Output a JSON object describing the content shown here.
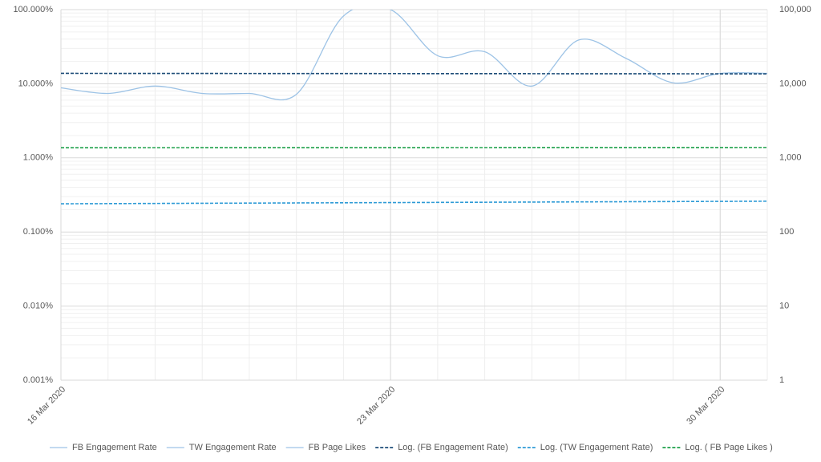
{
  "chart_data": {
    "type": "line",
    "x": [
      "2020-03-16",
      "2020-03-17",
      "2020-03-18",
      "2020-03-19",
      "2020-03-20",
      "2020-03-21",
      "2020-03-22",
      "2020-03-23",
      "2020-03-24",
      "2020-03-25",
      "2020-03-26",
      "2020-03-27",
      "2020-03-28",
      "2020-03-29",
      "2020-03-30",
      "2020-03-31"
    ],
    "xlim": [
      "2020-03-16",
      "2020-03-31"
    ],
    "xticks": [
      {
        "value": "2020-03-16",
        "label": "16 Mar 2020"
      },
      {
        "value": "2020-03-23",
        "label": "23 Mar 2020"
      },
      {
        "value": "2020-03-30",
        "label": "30 Mar 2020"
      }
    ],
    "log_scale": true,
    "grid": true,
    "ylim": [
      0.001,
      100
    ],
    "yticks": [
      {
        "value": 0.001,
        "label": "0.001%"
      },
      {
        "value": 0.01,
        "label": "0.010%"
      },
      {
        "value": 0.1,
        "label": "0.100%"
      },
      {
        "value": 1,
        "label": "1.000%"
      },
      {
        "value": 10,
        "label": "10.000%"
      },
      {
        "value": 100,
        "label": "100.000%"
      }
    ],
    "y2lim": [
      1,
      100000
    ],
    "y2ticks": [
      1,
      10,
      100,
      {
        "value": 1000,
        "label": "1,000"
      },
      {
        "value": 10000,
        "label": "10,000"
      },
      {
        "value": 100000,
        "label": "100,000"
      }
    ],
    "series": [
      {
        "name": "FB Engagement Rate",
        "color": "#9dc3e6",
        "values": [
          8.8,
          7.4,
          9.3,
          7.4,
          7.4,
          7.2,
          82,
          100,
          23.9,
          27,
          9.3,
          39,
          22,
          10.3,
          13.8,
          13.8
        ]
      },
      {
        "name": "TW Engagement Rate",
        "color": "#9dc3e6",
        "values": [
          null,
          null,
          null,
          null,
          null,
          null,
          null,
          null,
          null,
          null,
          null,
          null,
          null,
          null,
          null,
          null
        ]
      },
      {
        "name": "FB Page Likes",
        "color": "#9dc3e6",
        "values": [
          null,
          null,
          null,
          null,
          null,
          null,
          null,
          null,
          null,
          null,
          null,
          null,
          null,
          null,
          null,
          null
        ]
      }
    ],
    "trendlines": [
      {
        "name": "Log. (FB Engagement Rate)",
        "color": "#1f4e79",
        "values": [
          13.8,
          13.6
        ]
      },
      {
        "name": "Log. (TW Engagement Rate)",
        "color": "#2e9bd6",
        "values": [
          0.24,
          0.26
        ]
      },
      {
        "name": "Log. ( FB Page Likes )",
        "color": "#1ea04a",
        "values": [
          1.37,
          1.38
        ]
      }
    ],
    "legend": "bottom"
  }
}
